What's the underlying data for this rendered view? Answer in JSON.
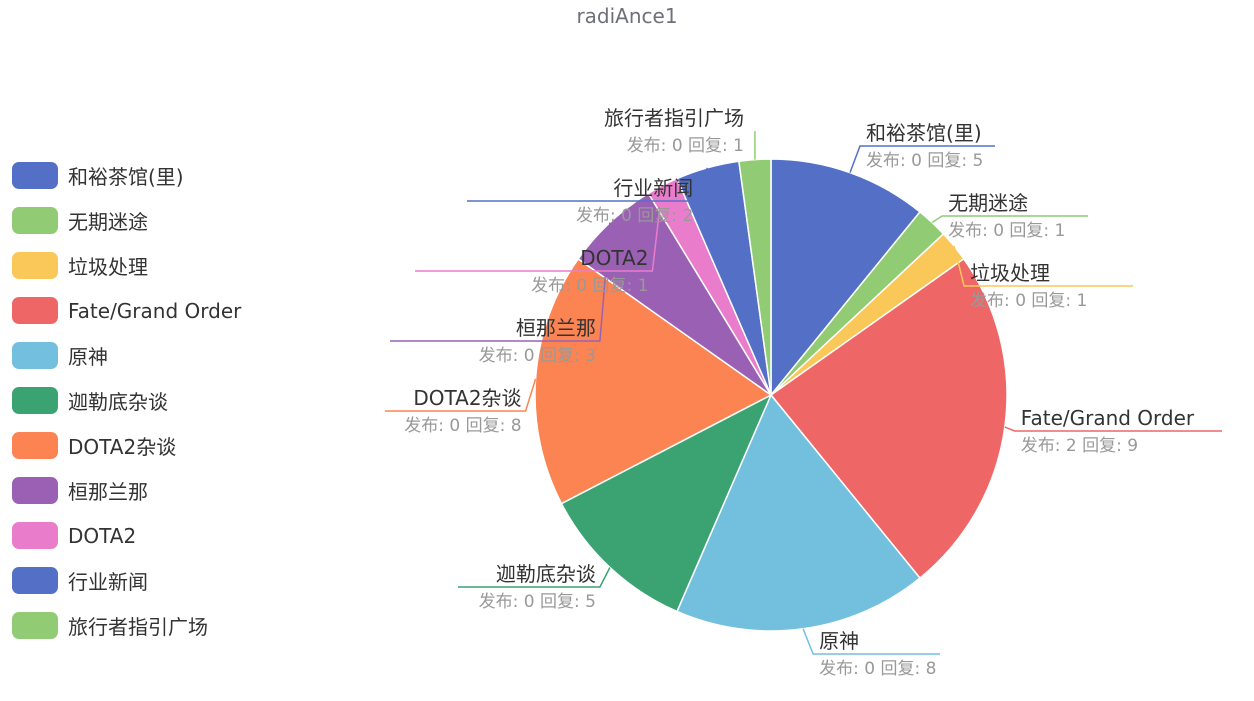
{
  "chart_data": {
    "type": "pie",
    "title": "radiAnce1",
    "legend_position": "left",
    "series": [
      {
        "name": "和裕茶馆(里)",
        "label": "和裕茶馆(里)",
        "detail": "发布: 0 回复: 5",
        "value": 5,
        "color": "#5470c6"
      },
      {
        "name": "无期迷途",
        "label": "无期迷途",
        "detail": "发布: 0 回复: 1",
        "value": 1,
        "color": "#91cc75"
      },
      {
        "name": "垃圾处理",
        "label": "垃圾处理",
        "detail": "发布: 0 回复: 1",
        "value": 1,
        "color": "#fac858"
      },
      {
        "name": "Fate/Grand Order",
        "label": "Fate/Grand Order",
        "detail": "发布: 2 回复: 9",
        "value": 11,
        "color": "#ee6666"
      },
      {
        "name": "原神",
        "label": "原神",
        "detail": "发布: 0 回复: 8",
        "value": 8,
        "color": "#73c0de"
      },
      {
        "name": "迦勒底杂谈",
        "label": "迦勒底杂谈",
        "detail": "发布: 0 回复: 5",
        "value": 5,
        "color": "#3ba272"
      },
      {
        "name": "DOTA2杂谈",
        "label": "DOTA2杂谈",
        "detail": "发布: 0 回复: 8",
        "value": 8,
        "color": "#fc8452"
      },
      {
        "name": "桓那兰那",
        "label": "桓那兰那",
        "detail": "发布: 0 回复: 3",
        "value": 3,
        "color": "#9a60b4"
      },
      {
        "name": "DOTA2",
        "label": "DOTA2",
        "detail": "发布: 0 回复: 1",
        "value": 1,
        "color": "#ea7ccc"
      },
      {
        "name": "行业新闻",
        "label": "行业新闻",
        "detail": "发布: 0 回复: 2",
        "value": 2,
        "color": "#5470c6"
      },
      {
        "name": "旅行者指引广场",
        "label": "旅行者指引广场",
        "detail": "发布: 0 回复: 1",
        "value": 1,
        "color": "#91cc75"
      }
    ]
  }
}
